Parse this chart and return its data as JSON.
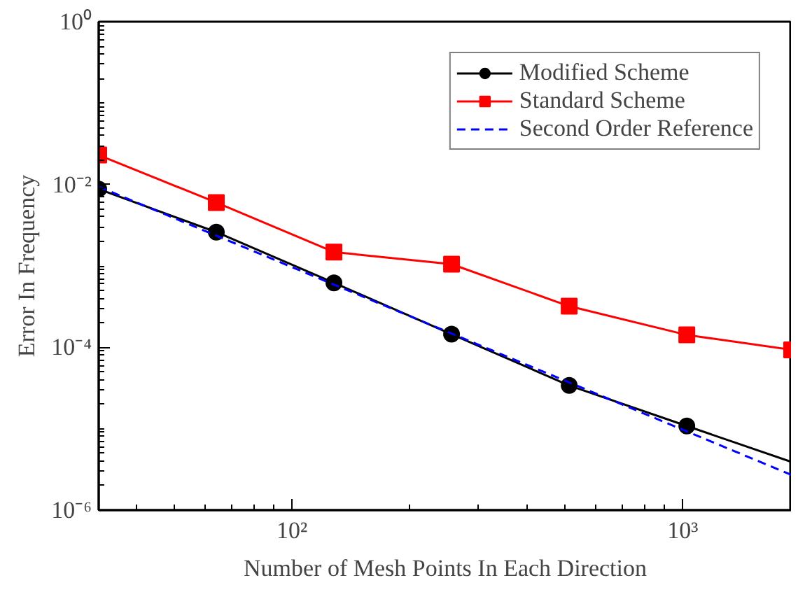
{
  "chart_data": {
    "type": "line",
    "xlabel": "Number of Mesh Points In Each Direction",
    "ylabel": "Error In Frequency",
    "log": "xy",
    "grid": false,
    "legend": "top right",
    "xlim": [
      32,
      1900
    ],
    "ylim": [
      1e-06,
      1
    ],
    "xticks": [
      {
        "value": 100,
        "label": "10²"
      },
      {
        "value": 1000,
        "label": "10³"
      }
    ],
    "yticks": [
      {
        "value": 1e-06,
        "label": "10⁻⁶"
      },
      {
        "value": 0.0001,
        "label": "10⁻⁴"
      },
      {
        "value": 0.01,
        "label": "10⁻²"
      },
      {
        "value": 1,
        "label": "10⁰"
      }
    ],
    "series": [
      {
        "name": "Modified Scheme",
        "color": "#000000",
        "marker": "circle",
        "line_style": "solid",
        "x": [
          32,
          64,
          128,
          256,
          512,
          1024
        ],
        "values": [
          0.0088,
          0.0026,
          0.00062,
          0.000145,
          3.4e-05,
          1.08e-05
        ]
      },
      {
        "color": "#000000",
        "marker": "none",
        "line_style": "solid",
        "x": [
          1024,
          1900
        ],
        "values": [
          1.08e-05,
          3.9e-06
        ]
      },
      {
        "name": "Standard Scheme",
        "color": "#ff0000",
        "marker": "square",
        "line_style": "solid",
        "x": [
          32,
          64,
          128,
          256,
          512,
          1024,
          1900
        ],
        "values": [
          0.023,
          0.006,
          0.00148,
          0.00105,
          0.00032,
          0.000142,
          9.3e-05
        ]
      },
      {
        "name": "Second Order Reference",
        "color": "#0000ff",
        "marker": "none",
        "line_style": "dashed",
        "x": [
          32,
          1900
        ],
        "values": [
          0.0094,
          2.7e-06
        ]
      }
    ]
  }
}
